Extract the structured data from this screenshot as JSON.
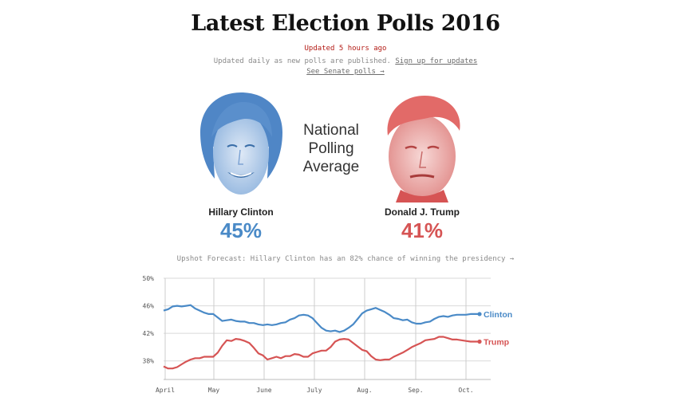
{
  "header": {
    "title": "Latest Election Polls 2016",
    "updated": "Updated 5 hours ago",
    "subline_text": "Updated daily as new polls are published. ",
    "signup_link": "Sign up for updates",
    "senate_link": "See Senate polls →"
  },
  "center_label": [
    "National",
    "Polling",
    "Average"
  ],
  "candidates": [
    {
      "name": "Hillary Clinton",
      "percent": "45%",
      "color": "#4a8ac7"
    },
    {
      "name": "Donald J. Trump",
      "percent": "41%",
      "color": "#d65454"
    }
  ],
  "forecast": {
    "text": "Upshot Forecast: Hillary Clinton has an 82% chance of winning the presidency →"
  },
  "chart_data": {
    "type": "line",
    "x_ticks": [
      "April",
      "May",
      "June",
      "July",
      "Aug.",
      "Sep.",
      "Oct."
    ],
    "y_ticks": [
      "50%",
      "46%",
      "42%",
      "38%"
    ],
    "ylim": [
      36,
      50
    ],
    "grid": true,
    "series": [
      {
        "name": "Clinton",
        "color": "#4a8ac7",
        "values": [
          45.3,
          45.5,
          45.9,
          46.0,
          45.9,
          46.0,
          46.1,
          45.6,
          45.3,
          45.0,
          44.8,
          44.8,
          44.3,
          43.8,
          43.9,
          44.0,
          43.8,
          43.7,
          43.7,
          43.5,
          43.5,
          43.3,
          43.2,
          43.3,
          43.2,
          43.3,
          43.5,
          43.6,
          44.0,
          44.2,
          44.6,
          44.7,
          44.6,
          44.2,
          43.5,
          42.8,
          42.4,
          42.3,
          42.4,
          42.2,
          42.4,
          42.8,
          43.3,
          44.1,
          44.9,
          45.3,
          45.5,
          45.7,
          45.4,
          45.1,
          44.7,
          44.2,
          44.1,
          43.9,
          44.0,
          43.6,
          43.4,
          43.4,
          43.6,
          43.7,
          44.1,
          44.4,
          44.5,
          44.4,
          44.6,
          44.7,
          44.7,
          44.7,
          44.8,
          44.8,
          44.8
        ]
      },
      {
        "name": "Trump",
        "color": "#d65454",
        "values": [
          37.2,
          36.9,
          36.9,
          37.1,
          37.5,
          37.9,
          38.2,
          38.4,
          38.4,
          38.6,
          38.6,
          38.6,
          39.2,
          40.2,
          41.0,
          40.9,
          41.2,
          41.1,
          40.9,
          40.6,
          39.9,
          39.1,
          38.8,
          38.2,
          38.4,
          38.6,
          38.4,
          38.7,
          38.7,
          39.0,
          38.9,
          38.6,
          38.6,
          39.1,
          39.3,
          39.5,
          39.5,
          40.0,
          40.8,
          41.1,
          41.2,
          41.1,
          40.6,
          40.1,
          39.6,
          39.4,
          38.7,
          38.2,
          38.1,
          38.2,
          38.2,
          38.6,
          38.9,
          39.2,
          39.6,
          40.0,
          40.3,
          40.6,
          41.0,
          41.1,
          41.2,
          41.5,
          41.5,
          41.3,
          41.1,
          41.1,
          41.0,
          40.9,
          40.8,
          40.8,
          40.8
        ]
      }
    ]
  }
}
